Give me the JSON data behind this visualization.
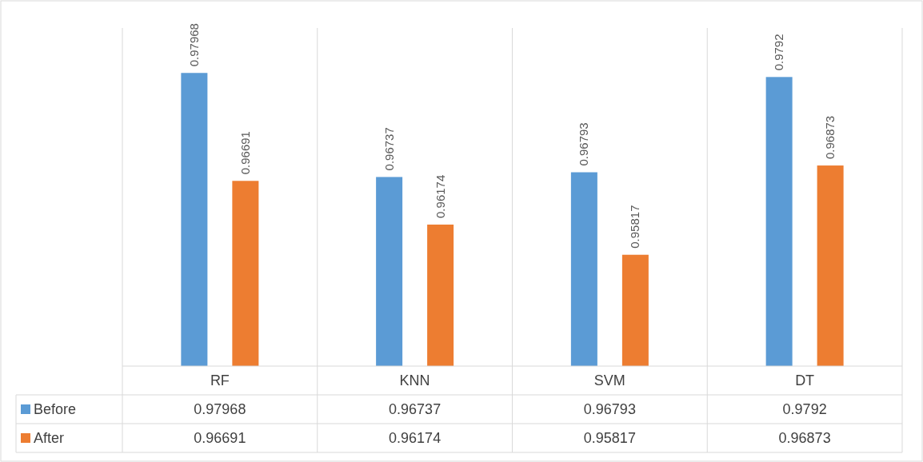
{
  "chart_data": {
    "type": "bar",
    "categories": [
      "RF",
      "KNN",
      "SVM",
      "DT"
    ],
    "series": [
      {
        "name": "Before",
        "color": "#5b9bd5",
        "values": [
          0.97968,
          0.96737,
          0.96793,
          0.9792
        ],
        "value_labels": [
          "0.97968",
          "0.96737",
          "0.96793",
          "0.9792"
        ]
      },
      {
        "name": "After",
        "color": "#ed7d31",
        "values": [
          0.96691,
          0.96174,
          0.95817,
          0.96873
        ],
        "value_labels": [
          "0.96691",
          "0.96174",
          "0.95817",
          "0.96873"
        ]
      }
    ],
    "ylim": [
      0.945,
      0.985
    ],
    "legend": "bottom",
    "annotations": [
      "0.97968",
      "0.96737",
      "0.96793",
      "0.9792",
      "0.96691",
      "0.96174",
      "0.95817",
      "0.96873"
    ]
  }
}
